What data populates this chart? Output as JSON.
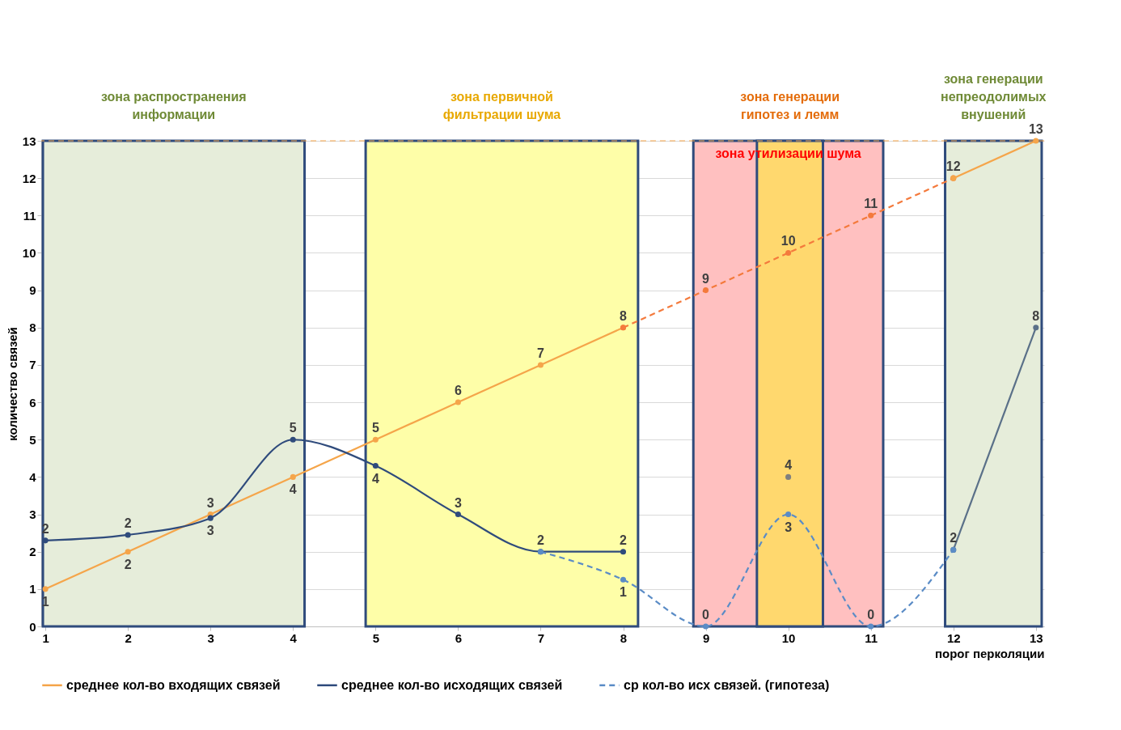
{
  "chart_data": {
    "type": "line",
    "xlabel": "порог перколяции",
    "ylabel": "количество связей",
    "xlim": [
      0.95,
      13.1
    ],
    "xticks": [
      1,
      2,
      3,
      4,
      5,
      6,
      7,
      8,
      9,
      10,
      11,
      12,
      13
    ],
    "ylim": [
      0,
      13
    ],
    "yticks": [
      0,
      1,
      2,
      3,
      4,
      5,
      6,
      7,
      8,
      9,
      10,
      11,
      12,
      13
    ],
    "grid": true,
    "legend": "bottom",
    "marker": "circle",
    "series": [
      {
        "name": "среднее кол-во входящих связей",
        "color": "#f5a54a",
        "line_style": "solid",
        "x": [
          1,
          2,
          3,
          4,
          5,
          6,
          7,
          8
        ],
        "values": [
          1,
          2,
          3,
          4,
          5,
          6,
          7,
          8
        ],
        "value_labels": [
          "1",
          "2",
          "3",
          "4",
          "5",
          "6",
          "7",
          "8"
        ]
      },
      {
        "color": "#f47a3c",
        "line_style": "dashed",
        "x": [
          8,
          9,
          10,
          11,
          12
        ],
        "values": [
          8,
          9,
          10,
          11,
          12
        ],
        "value_labels": [
          null,
          "9",
          "10",
          "11",
          "12"
        ]
      },
      {
        "color": "#f5a54a",
        "line_style": "solid",
        "x": [
          12,
          13
        ],
        "values": [
          12,
          13
        ],
        "value_labels": [
          null,
          "13"
        ]
      },
      {
        "name": "среднее кол-во исходящих связей",
        "color": "#2f4b7c",
        "line_style": "solid",
        "x": [
          1,
          2,
          3,
          4,
          5,
          6,
          7,
          8
        ],
        "values": [
          2.3,
          2.45,
          2.9,
          5,
          4.3,
          3,
          2,
          2
        ],
        "value_labels": [
          "2",
          "2",
          "3",
          "5",
          "4",
          "3",
          "2",
          "2"
        ]
      },
      {
        "color": "#5a7088",
        "line_style": "solid",
        "x": [
          12,
          13
        ],
        "values": [
          2.05,
          8
        ],
        "value_labels": [
          "2",
          "8"
        ]
      },
      {
        "type": "scatter",
        "color": "#7f7f7f",
        "x": [
          10
        ],
        "values": [
          4
        ],
        "value_labels": [
          "4"
        ]
      },
      {
        "name": "ср кол-во исх связей. (гипотеза)",
        "color": "#5b8cc6",
        "line_style": "dashed",
        "x": [
          7,
          8,
          9,
          10,
          11,
          12
        ],
        "values": [
          2,
          1.25,
          0,
          3,
          0,
          2.05
        ],
        "value_labels": [
          null,
          "1",
          "0",
          "3",
          "0",
          null
        ]
      }
    ],
    "bands": [
      {
        "axis": "x",
        "from": 0.97,
        "to": 4.14,
        "label": "зона распространения\nинформации",
        "color": "#e6edda"
      },
      {
        "axis": "x",
        "from": 4.88,
        "to": 8.18,
        "label": "зона первичной\nфильтрации шума",
        "color": "#fefea8"
      },
      {
        "axis": "x",
        "from": 8.85,
        "to": 11.15,
        "label": "зона утилизации шума",
        "color": "#ffc0c0"
      },
      {
        "axis": "x",
        "from": 9.62,
        "to": 10.42,
        "label": "зона генерации\nгипотез и лемм",
        "color": "#ffd86e"
      },
      {
        "axis": "x",
        "from": 11.9,
        "to": 13.07,
        "label": "зона генерации\nнепреодолимых\nвнушений",
        "color": "#e6edda"
      }
    ],
    "ref_lines": [
      {
        "axis": "y",
        "value": 13,
        "color": "#f5a54a",
        "line_style": "dashed"
      }
    ]
  }
}
